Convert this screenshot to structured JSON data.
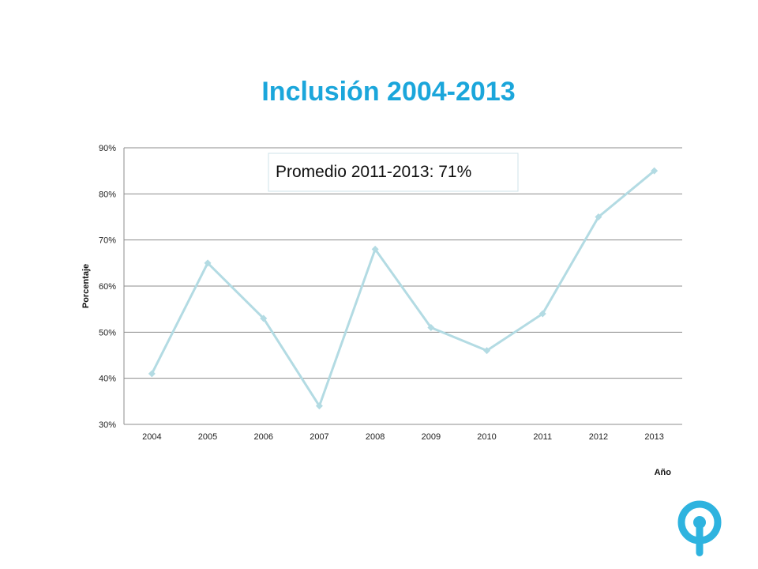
{
  "colors": {
    "title": "#1ba6db",
    "line": "#b3dbe3",
    "grid": "#8c8c8c",
    "annotation_border": "#cfe3ea",
    "logo": "#2eb3df"
  },
  "chart_data": {
    "type": "line",
    "title": "Inclusión 2004-2013",
    "xlabel": "Año",
    "ylabel": "Porcentaje",
    "categories": [
      "2004",
      "2005",
      "2006",
      "2007",
      "2008",
      "2009",
      "2010",
      "2011",
      "2012",
      "2013"
    ],
    "series": [
      {
        "values": [
          41,
          65,
          53,
          34,
          68,
          51,
          46,
          54,
          75,
          85
        ]
      }
    ],
    "ylim": [
      30,
      90
    ],
    "yticks": [
      30,
      40,
      50,
      60,
      70,
      80,
      90
    ],
    "ytick_labels": [
      "30%",
      "40%",
      "50%",
      "60%",
      "70%",
      "80%",
      "90%"
    ],
    "grid": true,
    "marker": "diamond",
    "annotation": "Promedio 2011-2013: 71%"
  },
  "logo": {
    "icon": "location-pin-logo-icon"
  }
}
